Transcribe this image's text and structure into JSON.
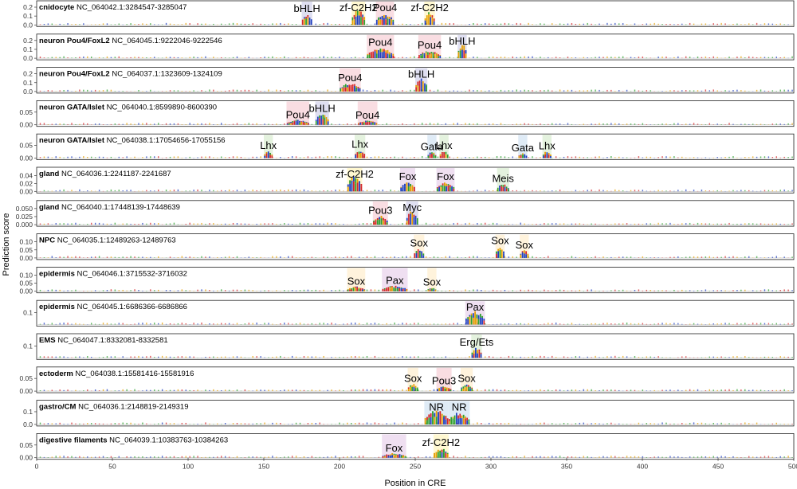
{
  "chart_data": {
    "type": "sequence-logo-tracks",
    "xlabel": "Position in CRE",
    "ylabel": "Prediction score",
    "xlim": [
      0,
      500
    ],
    "xticks": [
      0,
      50,
      100,
      150,
      200,
      250,
      300,
      350,
      400,
      450,
      500
    ],
    "nucleotide_colors": {
      "A": "#2ca02c",
      "C": "#1f3fbf",
      "G": "#e69f00",
      "T": "#d62728"
    },
    "panels": [
      {
        "celltype": "cnidocyte",
        "region": "NC_064042.1:3284547-3285047",
        "ylim": [
          0,
          0.2
        ],
        "yticks": [
          "0.0",
          "0.1",
          "0.2"
        ],
        "motifs": [
          {
            "name": "bHLH",
            "start": 175,
            "end": 182,
            "peak": 0.13,
            "color": "#d9d9ee"
          },
          {
            "name": "zf-C2H2",
            "start": 208,
            "end": 217,
            "peak": 0.2,
            "color": "#fff7c9"
          },
          {
            "name": "Pou4",
            "start": 224,
            "end": 236,
            "peak": 0.14,
            "color": "#f8d7dd"
          },
          {
            "name": "zf-C2H2",
            "start": 256,
            "end": 263,
            "peak": 0.16,
            "color": "#fff7c9"
          }
        ]
      },
      {
        "celltype": "neuron Pou4/FoxL2",
        "region": "NC_064045.1:9222046-9222546",
        "ylim": [
          0,
          0.2
        ],
        "yticks": [
          "0.0",
          "0.1",
          "0.2"
        ],
        "motifs": [
          {
            "name": "Pou4",
            "start": 218,
            "end": 236,
            "peak": 0.12,
            "color": "#f8d7dd"
          },
          {
            "name": "Pou4",
            "start": 252,
            "end": 267,
            "peak": 0.09,
            "color": "#f8d7dd"
          },
          {
            "name": "bHLH",
            "start": 278,
            "end": 284,
            "peak": 0.17,
            "color": "#d9d9ee"
          }
        ]
      },
      {
        "celltype": "neuron Pou4/FoxL2",
        "region": "NC_064037.1:1323609-1324109",
        "ylim": [
          0,
          0.2
        ],
        "yticks": [
          "0.0",
          "0.1",
          "0.2"
        ],
        "motifs": [
          {
            "name": "Pou4",
            "start": 200,
            "end": 214,
            "peak": 0.1,
            "color": "#f8d7dd"
          },
          {
            "name": "bHLH",
            "start": 250,
            "end": 258,
            "peak": 0.16,
            "color": "#d9d9ee"
          }
        ]
      },
      {
        "celltype": "neuron GATA/Islet",
        "region": "NC_064040.1:8599890-8600390",
        "ylim": [
          0,
          0.07
        ],
        "yticks": [
          "0.00",
          "0.05"
        ],
        "motifs": [
          {
            "name": "Pou4",
            "start": 165,
            "end": 180,
            "peak": 0.02,
            "color": "#f8d7dd"
          },
          {
            "name": "bHLH",
            "start": 184,
            "end": 193,
            "peak": 0.045,
            "color": "#d9d9ee"
          },
          {
            "name": "Pou4",
            "start": 212,
            "end": 225,
            "peak": 0.018,
            "color": "#f8d7dd"
          }
        ]
      },
      {
        "celltype": "neuron GATA/Islet",
        "region": "NC_064038.1:17054656-17055156",
        "ylim": [
          0,
          0.07
        ],
        "yticks": [
          "0.00",
          "0.05"
        ],
        "motifs": [
          {
            "name": "Lhx",
            "start": 150,
            "end": 156,
            "peak": 0.03,
            "color": "#dff0d8"
          },
          {
            "name": "Lhx",
            "start": 210,
            "end": 217,
            "peak": 0.035,
            "color": "#dff0d8"
          },
          {
            "name": "Gata",
            "start": 258,
            "end": 264,
            "peak": 0.025,
            "color": "#d9e8f5"
          },
          {
            "name": "Lhx",
            "start": 266,
            "end": 272,
            "peak": 0.03,
            "color": "#dff0d8"
          },
          {
            "name": "Gata",
            "start": 318,
            "end": 324,
            "peak": 0.02,
            "color": "#d9e8f5"
          },
          {
            "name": "Lhx",
            "start": 334,
            "end": 340,
            "peak": 0.028,
            "color": "#dff0d8"
          }
        ]
      },
      {
        "celltype": "gland",
        "region": "NC_064036.1:2241187-2241687",
        "ylim": [
          0,
          0.045
        ],
        "yticks": [
          "0.00",
          "0.02",
          "0.04"
        ],
        "motifs": [
          {
            "name": "zf-C2H2",
            "start": 205,
            "end": 215,
            "peak": 0.04,
            "color": "#fff7c9"
          },
          {
            "name": "Fox",
            "start": 240,
            "end": 250,
            "peak": 0.025,
            "color": "#ecd9ef"
          },
          {
            "name": "Fox",
            "start": 264,
            "end": 276,
            "peak": 0.025,
            "color": "#ecd9ef"
          },
          {
            "name": "Meis",
            "start": 304,
            "end": 312,
            "peak": 0.02,
            "color": "#dff0d8"
          }
        ]
      },
      {
        "celltype": "gland",
        "region": "NC_064040.1:17448139-17448639",
        "ylim": [
          0,
          0.055
        ],
        "yticks": [
          "0.000",
          "0.025",
          "0.050"
        ],
        "motifs": [
          {
            "name": "Pou3",
            "start": 222,
            "end": 232,
            "peak": 0.028,
            "color": "#f8d7dd"
          },
          {
            "name": "Myc",
            "start": 244,
            "end": 252,
            "peak": 0.045,
            "color": "#d9d9ee"
          }
        ]
      },
      {
        "celltype": "NPC",
        "region": "NC_064035.1:12489263-12489763",
        "ylim": [
          0,
          0.11
        ],
        "yticks": [
          "0.00",
          "0.05",
          "0.10"
        ],
        "motifs": [
          {
            "name": "Sox",
            "start": 249,
            "end": 256,
            "peak": 0.06,
            "color": "#fff1d6"
          },
          {
            "name": "Sox",
            "start": 303,
            "end": 309,
            "peak": 0.08,
            "color": "#fff1d6"
          },
          {
            "name": "Sox",
            "start": 319,
            "end": 325,
            "peak": 0.05,
            "color": "#fff1d6"
          }
        ]
      },
      {
        "celltype": "epidermis",
        "region": "NC_064046.1:3715532-3716032",
        "ylim": [
          0,
          0.11
        ],
        "yticks": [
          "0.00",
          "0.05",
          "0.10"
        ],
        "motifs": [
          {
            "name": "Sox",
            "start": 205,
            "end": 217,
            "peak": 0.03,
            "color": "#fff1d6"
          },
          {
            "name": "Pax",
            "start": 228,
            "end": 245,
            "peak": 0.035,
            "color": "#ecd9ef"
          },
          {
            "name": "Sox",
            "start": 258,
            "end": 264,
            "peak": 0.025,
            "color": "#fff1d6"
          }
        ]
      },
      {
        "celltype": "epidermis",
        "region": "NC_064045.1:6686366-6686866",
        "ylim": [
          0,
          0.15
        ],
        "yticks": [
          "0.1"
        ],
        "motifs": [
          {
            "name": "Pax",
            "start": 283,
            "end": 296,
            "peak": 0.12,
            "color": "#ecd9ef"
          }
        ]
      },
      {
        "celltype": "EMS",
        "region": "NC_064047.1:8332081-8332581",
        "ylim": [
          0,
          0.15
        ],
        "yticks": [
          "0.1"
        ],
        "motifs": [
          {
            "name": "Erg/Ets",
            "start": 287,
            "end": 294,
            "peak": 0.09,
            "color": "#dff0d8"
          }
        ]
      },
      {
        "celltype": "ectoderm",
        "region": "NC_064038.1:15581416-15581916",
        "ylim": [
          0,
          0.07
        ],
        "yticks": [
          "0.00",
          "0.05"
        ],
        "motifs": [
          {
            "name": "Sox",
            "start": 245,
            "end": 252,
            "peak": 0.03,
            "color": "#fff1d6"
          },
          {
            "name": "Pou3",
            "start": 264,
            "end": 274,
            "peak": 0.02,
            "color": "#f8d7dd"
          },
          {
            "name": "Sox",
            "start": 280,
            "end": 288,
            "peak": 0.03,
            "color": "#fff1d6"
          }
        ]
      },
      {
        "celltype": "gastro/CM",
        "region": "NC_064036.1:2148819-2149319",
        "ylim": [
          0,
          0.14
        ],
        "yticks": [
          "0.0",
          "0.1"
        ],
        "motifs": [
          {
            "name": "NR",
            "start": 256,
            "end": 272,
            "peak": 0.12,
            "color": "#d9e8f5"
          },
          {
            "name": "NR",
            "start": 272,
            "end": 286,
            "peak": 0.1,
            "color": "#d9e8f5"
          }
        ]
      },
      {
        "celltype": "digestive filaments",
        "region": "NC_064039.1:10383763-10384263",
        "ylim": [
          0,
          0.07
        ],
        "yticks": [
          "0.00",
          "0.05"
        ],
        "motifs": [
          {
            "name": "Fox",
            "start": 228,
            "end": 244,
            "peak": 0.018,
            "color": "#ecd9ef"
          },
          {
            "name": "zf-C2H2",
            "start": 262,
            "end": 272,
            "peak": 0.04,
            "color": "#fff7c9"
          }
        ]
      }
    ]
  }
}
